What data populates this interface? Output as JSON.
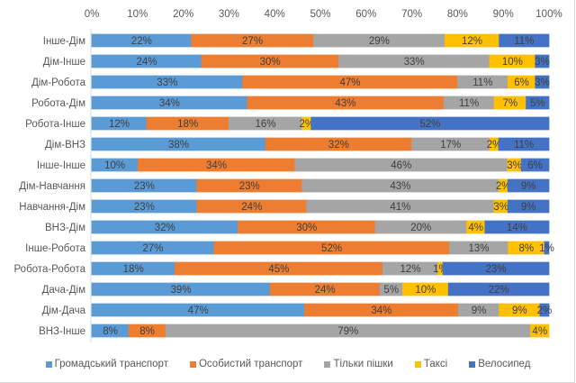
{
  "chart_data": {
    "type": "bar",
    "orientation": "horizontal",
    "stacked": "percent",
    "title": "",
    "xlabel": "",
    "ylabel": "",
    "xlim": [
      0,
      100
    ],
    "x_ticks": [
      "0%",
      "10%",
      "20%",
      "30%",
      "40%",
      "50%",
      "60%",
      "70%",
      "80%",
      "90%",
      "100%"
    ],
    "grid": false,
    "legend_position": "bottom",
    "categories": [
      "Інше-Дім",
      "Дім-Інше",
      "Дім-Робота",
      "Робота-Дім",
      "Робота-Інше",
      "Дім-ВНЗ",
      "Інше-Інше",
      "Дім-Навчання",
      "Навчання-Дім",
      "ВНЗ-Дім",
      "Інше-Робота",
      "Робота-Робота",
      "Дача-Дім",
      "Дім-Дача",
      "ВНЗ-Інше"
    ],
    "series": [
      {
        "name": "Громадський транспорт",
        "color": "#5B9BD5",
        "values": [
          22,
          24,
          33,
          34,
          12,
          38,
          10,
          23,
          23,
          32,
          27,
          18,
          39,
          47,
          8
        ]
      },
      {
        "name": "Особистий транспорт",
        "color": "#ED7D31",
        "values": [
          27,
          30,
          47,
          43,
          18,
          32,
          34,
          23,
          24,
          30,
          52,
          45,
          24,
          34,
          8
        ]
      },
      {
        "name": "Тільки пішки",
        "color": "#A5A5A5",
        "values": [
          29,
          33,
          11,
          11,
          16,
          17,
          46,
          43,
          41,
          20,
          13,
          12,
          5,
          9,
          79
        ]
      },
      {
        "name": "Таксі",
        "color": "#FFC000",
        "values": [
          12,
          10,
          6,
          7,
          2,
          2,
          3,
          2,
          3,
          4,
          8,
          1,
          10,
          9,
          4
        ]
      },
      {
        "name": "Велосипед",
        "color": "#4472C4",
        "values": [
          11,
          3,
          3,
          5,
          52,
          11,
          6,
          9,
          9,
          14,
          1,
          23,
          22,
          2,
          0
        ]
      }
    ]
  }
}
